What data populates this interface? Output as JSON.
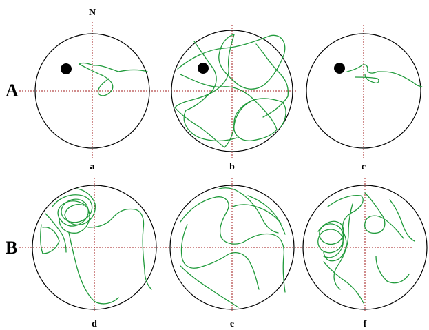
{
  "figure": {
    "north_label": "N",
    "row_labels": [
      "A",
      "B"
    ],
    "panels": [
      {
        "id": "a",
        "label": "a",
        "platform": true
      },
      {
        "id": "b",
        "label": "b",
        "platform": true
      },
      {
        "id": "c",
        "label": "c",
        "platform": true
      },
      {
        "id": "d",
        "label": "d",
        "platform": false
      },
      {
        "id": "e",
        "label": "e",
        "platform": false
      },
      {
        "id": "f",
        "label": "f",
        "platform": false
      }
    ],
    "colors": {
      "arena_outline": "#000000",
      "guide_lines": "#a01818",
      "swim_path": "#1f9a3a",
      "platform": "#000000"
    }
  }
}
